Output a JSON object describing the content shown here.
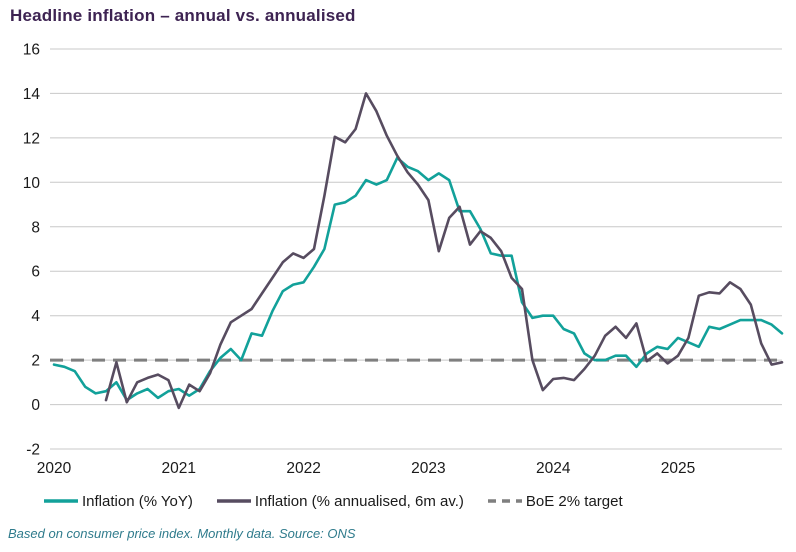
{
  "header": {
    "title": "Headline inflation – annual vs. annualised"
  },
  "footer": {
    "text": "Based on consumer price index. Monthly data. Source: ONS"
  },
  "colors": {
    "title": "#3D2352",
    "grid": "#C8C8C8",
    "axis_text": "#1A1A1A",
    "annual_line": "#12A19A",
    "annualised_line": "#574C60",
    "target_line": "#7F7F7F",
    "source_note": "#2F7B8C"
  },
  "chart_data": {
    "type": "line",
    "title": "Headline inflation – annual vs. annualised",
    "xlabel": "",
    "ylabel": "",
    "ylim": [
      -2,
      16
    ],
    "y_ticks": [
      16,
      14,
      12,
      10,
      8,
      6,
      4,
      2,
      0,
      -2
    ],
    "x_tick_labels": [
      "2020",
      "2021",
      "2022",
      "2023",
      "2024",
      "2025"
    ],
    "x_tick_month_index": [
      0,
      12,
      24,
      36,
      48,
      60
    ],
    "months_total": 71,
    "x_range_note": "monthly points, Jan 2020 to Nov 2025",
    "grid": "horizontal",
    "legend_position": "bottom",
    "series": [
      {
        "name": "Inflation (% YoY)",
        "color": "#12A19A",
        "start_index": 0,
        "values": [
          1.8,
          1.7,
          1.5,
          0.8,
          0.5,
          0.6,
          1.0,
          0.2,
          0.5,
          0.7,
          0.3,
          0.6,
          0.7,
          0.4,
          0.7,
          1.5,
          2.1,
          2.5,
          2.0,
          3.2,
          3.1,
          4.2,
          5.1,
          5.4,
          5.5,
          6.2,
          7.0,
          9.0,
          9.1,
          9.4,
          10.1,
          9.9,
          10.1,
          11.1,
          10.7,
          10.5,
          10.1,
          10.4,
          10.1,
          8.7,
          8.7,
          7.9,
          6.8,
          6.7,
          6.7,
          4.6,
          3.9,
          4.0,
          4.0,
          3.4,
          3.2,
          2.3,
          2.0,
          2.0,
          2.2,
          2.2,
          1.7,
          2.3,
          2.6,
          2.5,
          3.0,
          2.8,
          2.6,
          3.5,
          3.4,
          3.6,
          3.8,
          3.8,
          3.8,
          3.6,
          3.2
        ]
      },
      {
        "name": "Inflation (% annualised, 6m av.)",
        "color": "#574C60",
        "start_index": 5,
        "values": [
          0.2,
          1.9,
          0.1,
          1.0,
          1.2,
          1.35,
          1.1,
          -0.15,
          0.9,
          0.6,
          1.4,
          2.7,
          3.7,
          4.0,
          4.3,
          5.0,
          5.7,
          6.4,
          6.8,
          6.6,
          7.0,
          9.4,
          12.05,
          11.8,
          12.4,
          14.0,
          13.2,
          12.1,
          11.2,
          10.45,
          9.9,
          9.2,
          6.9,
          8.4,
          8.9,
          7.2,
          7.8,
          7.5,
          6.9,
          5.7,
          5.2,
          2.0,
          0.65,
          1.15,
          1.2,
          1.1,
          1.6,
          2.2,
          3.1,
          3.5,
          3.0,
          3.65,
          1.95,
          2.3,
          1.85,
          2.2,
          3.0,
          4.9,
          5.05,
          5.0,
          5.5,
          5.2,
          4.5,
          2.75,
          1.8,
          1.9
        ]
      }
    ],
    "target": {
      "label": "BoE 2% target",
      "value": 2,
      "color": "#7F7F7F",
      "style": "dashed"
    }
  }
}
